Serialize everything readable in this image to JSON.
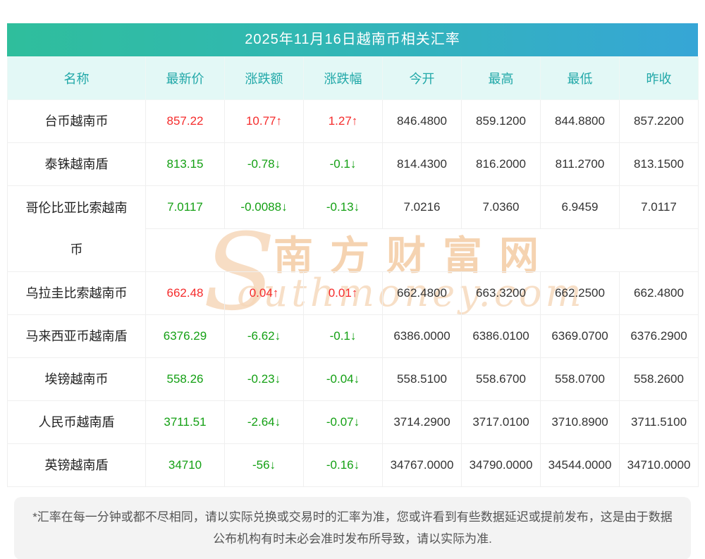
{
  "page_title": "2025年11月16日越南币相关汇率",
  "colors": {
    "title_gradient_left": "#2fbe9c",
    "title_gradient_right": "#36a6d6",
    "header_bg": "#e3f8f6",
    "header_text": "#21a8a8",
    "up": "#f52c2c",
    "down": "#14a014",
    "watermark": "#f4cfa9",
    "footer_bg": "#f3f3f3"
  },
  "chart_data": {
    "type": "table",
    "title": "2025年11月16日越南币相关汇率",
    "columns": [
      "名称",
      "最新价",
      "涨跌额",
      "涨跌幅",
      "今开",
      "最高",
      "最低",
      "昨收"
    ],
    "rows": [
      {
        "name": "台币越南币",
        "latest": "857.22",
        "change": "10.77↑",
        "change_pct": "1.27↑",
        "open": "846.4800",
        "high": "859.1200",
        "low": "844.8800",
        "prev_close": "857.2200",
        "trend": "up"
      },
      {
        "name": "泰铢越南盾",
        "latest": "813.15",
        "change": "-0.78↓",
        "change_pct": "-0.1↓",
        "open": "814.4300",
        "high": "816.2000",
        "low": "811.2700",
        "prev_close": "813.1500",
        "trend": "down"
      },
      {
        "name": "哥伦比亚比索越南币",
        "latest": "7.0117",
        "change": "-0.0088↓",
        "change_pct": "-0.13↓",
        "open": "7.0216",
        "high": "7.0360",
        "low": "6.9459",
        "prev_close": "7.0117",
        "trend": "down"
      },
      {
        "name": "乌拉圭比索越南币",
        "latest": "662.48",
        "change": "0.04↑",
        "change_pct": "0.01↑",
        "open": "662.4800",
        "high": "663.3200",
        "low": "662.2500",
        "prev_close": "662.4800",
        "trend": "up"
      },
      {
        "name": "马来西亚币越南盾",
        "latest": "6376.29",
        "change": "-6.62↓",
        "change_pct": "-0.1↓",
        "open": "6386.0000",
        "high": "6386.0100",
        "low": "6369.0700",
        "prev_close": "6376.2900",
        "trend": "down"
      },
      {
        "name": "埃镑越南币",
        "latest": "558.26",
        "change": "-0.23↓",
        "change_pct": "-0.04↓",
        "open": "558.5100",
        "high": "558.6700",
        "low": "558.0700",
        "prev_close": "558.2600",
        "trend": "down"
      },
      {
        "name": "人民币越南盾",
        "latest": "3711.51",
        "change": "-2.64↓",
        "change_pct": "-0.07↓",
        "open": "3714.2900",
        "high": "3717.0100",
        "low": "3710.8900",
        "prev_close": "3711.5100",
        "trend": "down"
      },
      {
        "name": "英镑越南盾",
        "latest": "34710",
        "change": "-56↓",
        "change_pct": "-0.16↓",
        "open": "34767.0000",
        "high": "34790.0000",
        "low": "34544.0000",
        "prev_close": "34710.0000",
        "trend": "down"
      }
    ]
  },
  "watermark": {
    "initial": "S",
    "cn": "南方财富网",
    "en": "outhmoney.com"
  },
  "footer_note": "*汇率在每一分钟或都不尽相同，请以实际兑换或交易时的汇率为准，您或许看到有些数据延迟或提前发布，这是由于数据公布机构有时未必会准时发布所导致，请以实际为准."
}
